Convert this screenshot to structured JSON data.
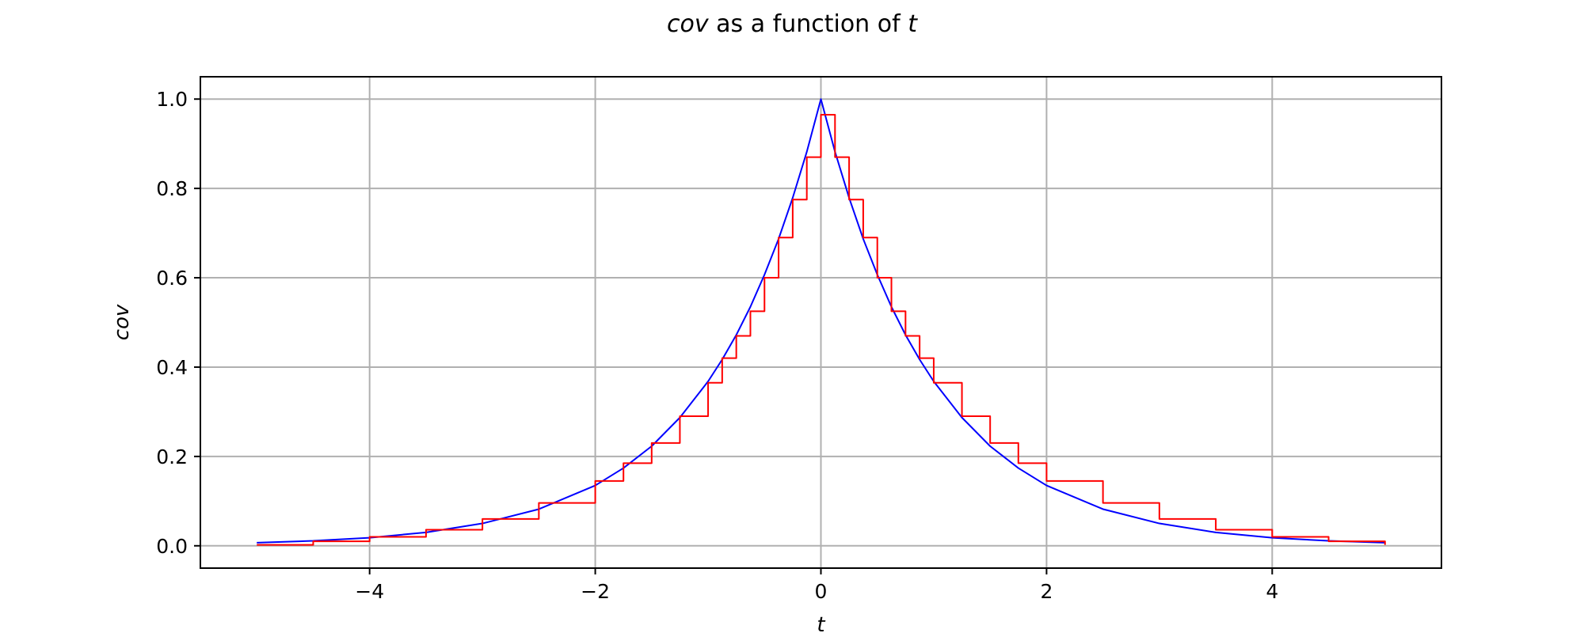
{
  "chart_data": {
    "type": "line",
    "title": {
      "var": "cov",
      "middle": " as a function of ",
      "param": "t"
    },
    "xlabel": "t",
    "ylabel": "cov",
    "xlim": [
      -5.5,
      5.5
    ],
    "ylim": [
      -0.05,
      1.05
    ],
    "x_ticks": [
      {
        "value": -4,
        "label": "−4"
      },
      {
        "value": -2,
        "label": "−2"
      },
      {
        "value": 0,
        "label": "0"
      },
      {
        "value": 2,
        "label": "2"
      },
      {
        "value": 4,
        "label": "4"
      }
    ],
    "y_ticks": [
      {
        "value": 0.0,
        "label": "0.0"
      },
      {
        "value": 0.2,
        "label": "0.2"
      },
      {
        "value": 0.4,
        "label": "0.4"
      },
      {
        "value": 0.6,
        "label": "0.6"
      },
      {
        "value": 0.8,
        "label": "0.8"
      },
      {
        "value": 1.0,
        "label": "1.0"
      }
    ],
    "grid": true,
    "series": [
      {
        "kind": "line",
        "color": "#0000ff",
        "x": [
          -5.0,
          -4.5,
          -4.0,
          -3.5,
          -3.0,
          -2.5,
          -2.0,
          -1.75,
          -1.5,
          -1.25,
          -1.0,
          -0.875,
          -0.75,
          -0.625,
          -0.5,
          -0.375,
          -0.25,
          -0.125,
          0.0,
          0.125,
          0.25,
          0.375,
          0.5,
          0.625,
          0.75,
          0.875,
          1.0,
          1.25,
          1.5,
          1.75,
          2.0,
          2.5,
          3.0,
          3.5,
          4.0,
          4.5,
          5.0
        ],
        "y": [
          0.007,
          0.011,
          0.018,
          0.03,
          0.05,
          0.082,
          0.135,
          0.174,
          0.223,
          0.287,
          0.368,
          0.417,
          0.472,
          0.535,
          0.607,
          0.687,
          0.779,
          0.882,
          1.0,
          0.882,
          0.779,
          0.687,
          0.607,
          0.535,
          0.472,
          0.417,
          0.368,
          0.287,
          0.223,
          0.174,
          0.135,
          0.082,
          0.05,
          0.03,
          0.018,
          0.011,
          0.007
        ]
      },
      {
        "kind": "step",
        "color": "#ff0000",
        "x": [
          -5.0,
          -4.5,
          -4.0,
          -3.5,
          -3.0,
          -2.5,
          -2.0,
          -1.75,
          -1.5,
          -1.25,
          -1.0,
          -0.875,
          -0.75,
          -0.625,
          -0.5,
          -0.375,
          -0.25,
          -0.125,
          0.0,
          0.125,
          0.25,
          0.375,
          0.5,
          0.625,
          0.75,
          0.875,
          1.0,
          1.25,
          1.5,
          1.75,
          2.0,
          2.5,
          3.0,
          3.5,
          4.0,
          4.5,
          5.0
        ],
        "y": [
          0.002,
          0.01,
          0.02,
          0.036,
          0.06,
          0.096,
          0.145,
          0.185,
          0.23,
          0.29,
          0.365,
          0.42,
          0.47,
          0.525,
          0.6,
          0.69,
          0.775,
          0.87,
          0.965,
          0.87,
          0.775,
          0.69,
          0.6,
          0.525,
          0.47,
          0.42,
          0.365,
          0.29,
          0.23,
          0.185,
          0.145,
          0.096,
          0.06,
          0.036,
          0.02,
          0.01,
          0.002
        ]
      }
    ]
  }
}
